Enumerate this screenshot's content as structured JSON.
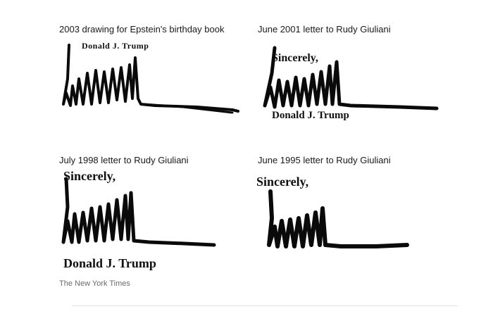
{
  "panels": [
    {
      "caption": "2003 drawing for Epstein's birthday book",
      "typed_name": "Donald J. Trump"
    },
    {
      "caption": "June 2001 letter to Rudy Giuliani",
      "closing": "Sincerely,",
      "typed_name": "Donald J. Trump"
    },
    {
      "caption": "July 1998 letter to Rudy Giuliani",
      "closing": "Sincerely,",
      "typed_name": "Donald J. Trump"
    },
    {
      "caption": "June 1995 letter to Rudy Giuliani",
      "closing": "Sincerely,"
    }
  ],
  "credit": "The New York Times",
  "ink_color": "#0a0a0a"
}
